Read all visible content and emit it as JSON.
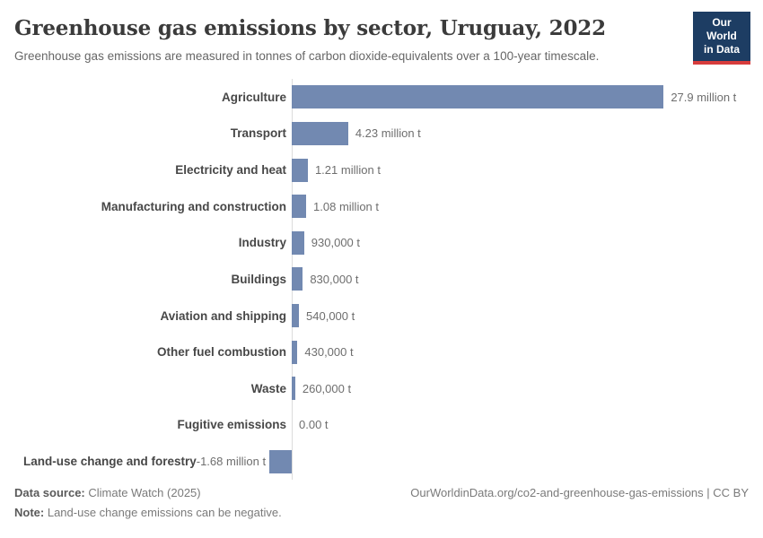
{
  "header": {
    "title": "Greenhouse gas emissions by sector, Uruguay, 2022",
    "subtitle": "Greenhouse gas emissions are measured in tonnes of carbon dioxide-equivalents over a 100-year timescale.",
    "logo": {
      "line1": "Our World",
      "line2": "in Data"
    }
  },
  "chart_data": {
    "type": "bar",
    "orientation": "horizontal",
    "title": "Greenhouse gas emissions by sector, Uruguay, 2022",
    "unit": "tonnes of carbon dioxide-equivalents (100-year timescale)",
    "categories": [
      "Agriculture",
      "Transport",
      "Electricity and heat",
      "Manufacturing and construction",
      "Industry",
      "Buildings",
      "Aviation and shipping",
      "Other fuel combustion",
      "Waste",
      "Fugitive emissions",
      "Land-use change and forestry"
    ],
    "values_million_t": [
      27.9,
      4.23,
      1.21,
      1.08,
      0.93,
      0.83,
      0.54,
      0.43,
      0.26,
      0,
      -1.68
    ],
    "value_labels": [
      "27.9 million t",
      "4.23 million t",
      "1.21 million t",
      "1.08 million t",
      "930,000 t",
      "830,000 t",
      "540,000 t",
      "430,000 t",
      "260,000 t",
      "0.00 t",
      "-1.68 million t"
    ],
    "xlim_million_t": [
      -2,
      28.5
    ],
    "bar_color": "#7289b1",
    "axis_line_color": "#dcdcdc",
    "grid": false,
    "legend": "none"
  },
  "footer": {
    "datasource_label": "Data source:",
    "datasource_value": "Climate Watch (2025)",
    "note_label": "Note:",
    "note_value": "Land-use change emissions can be negative.",
    "link": "OurWorldinData.org/co2-and-greenhouse-gas-emissions | CC BY"
  }
}
